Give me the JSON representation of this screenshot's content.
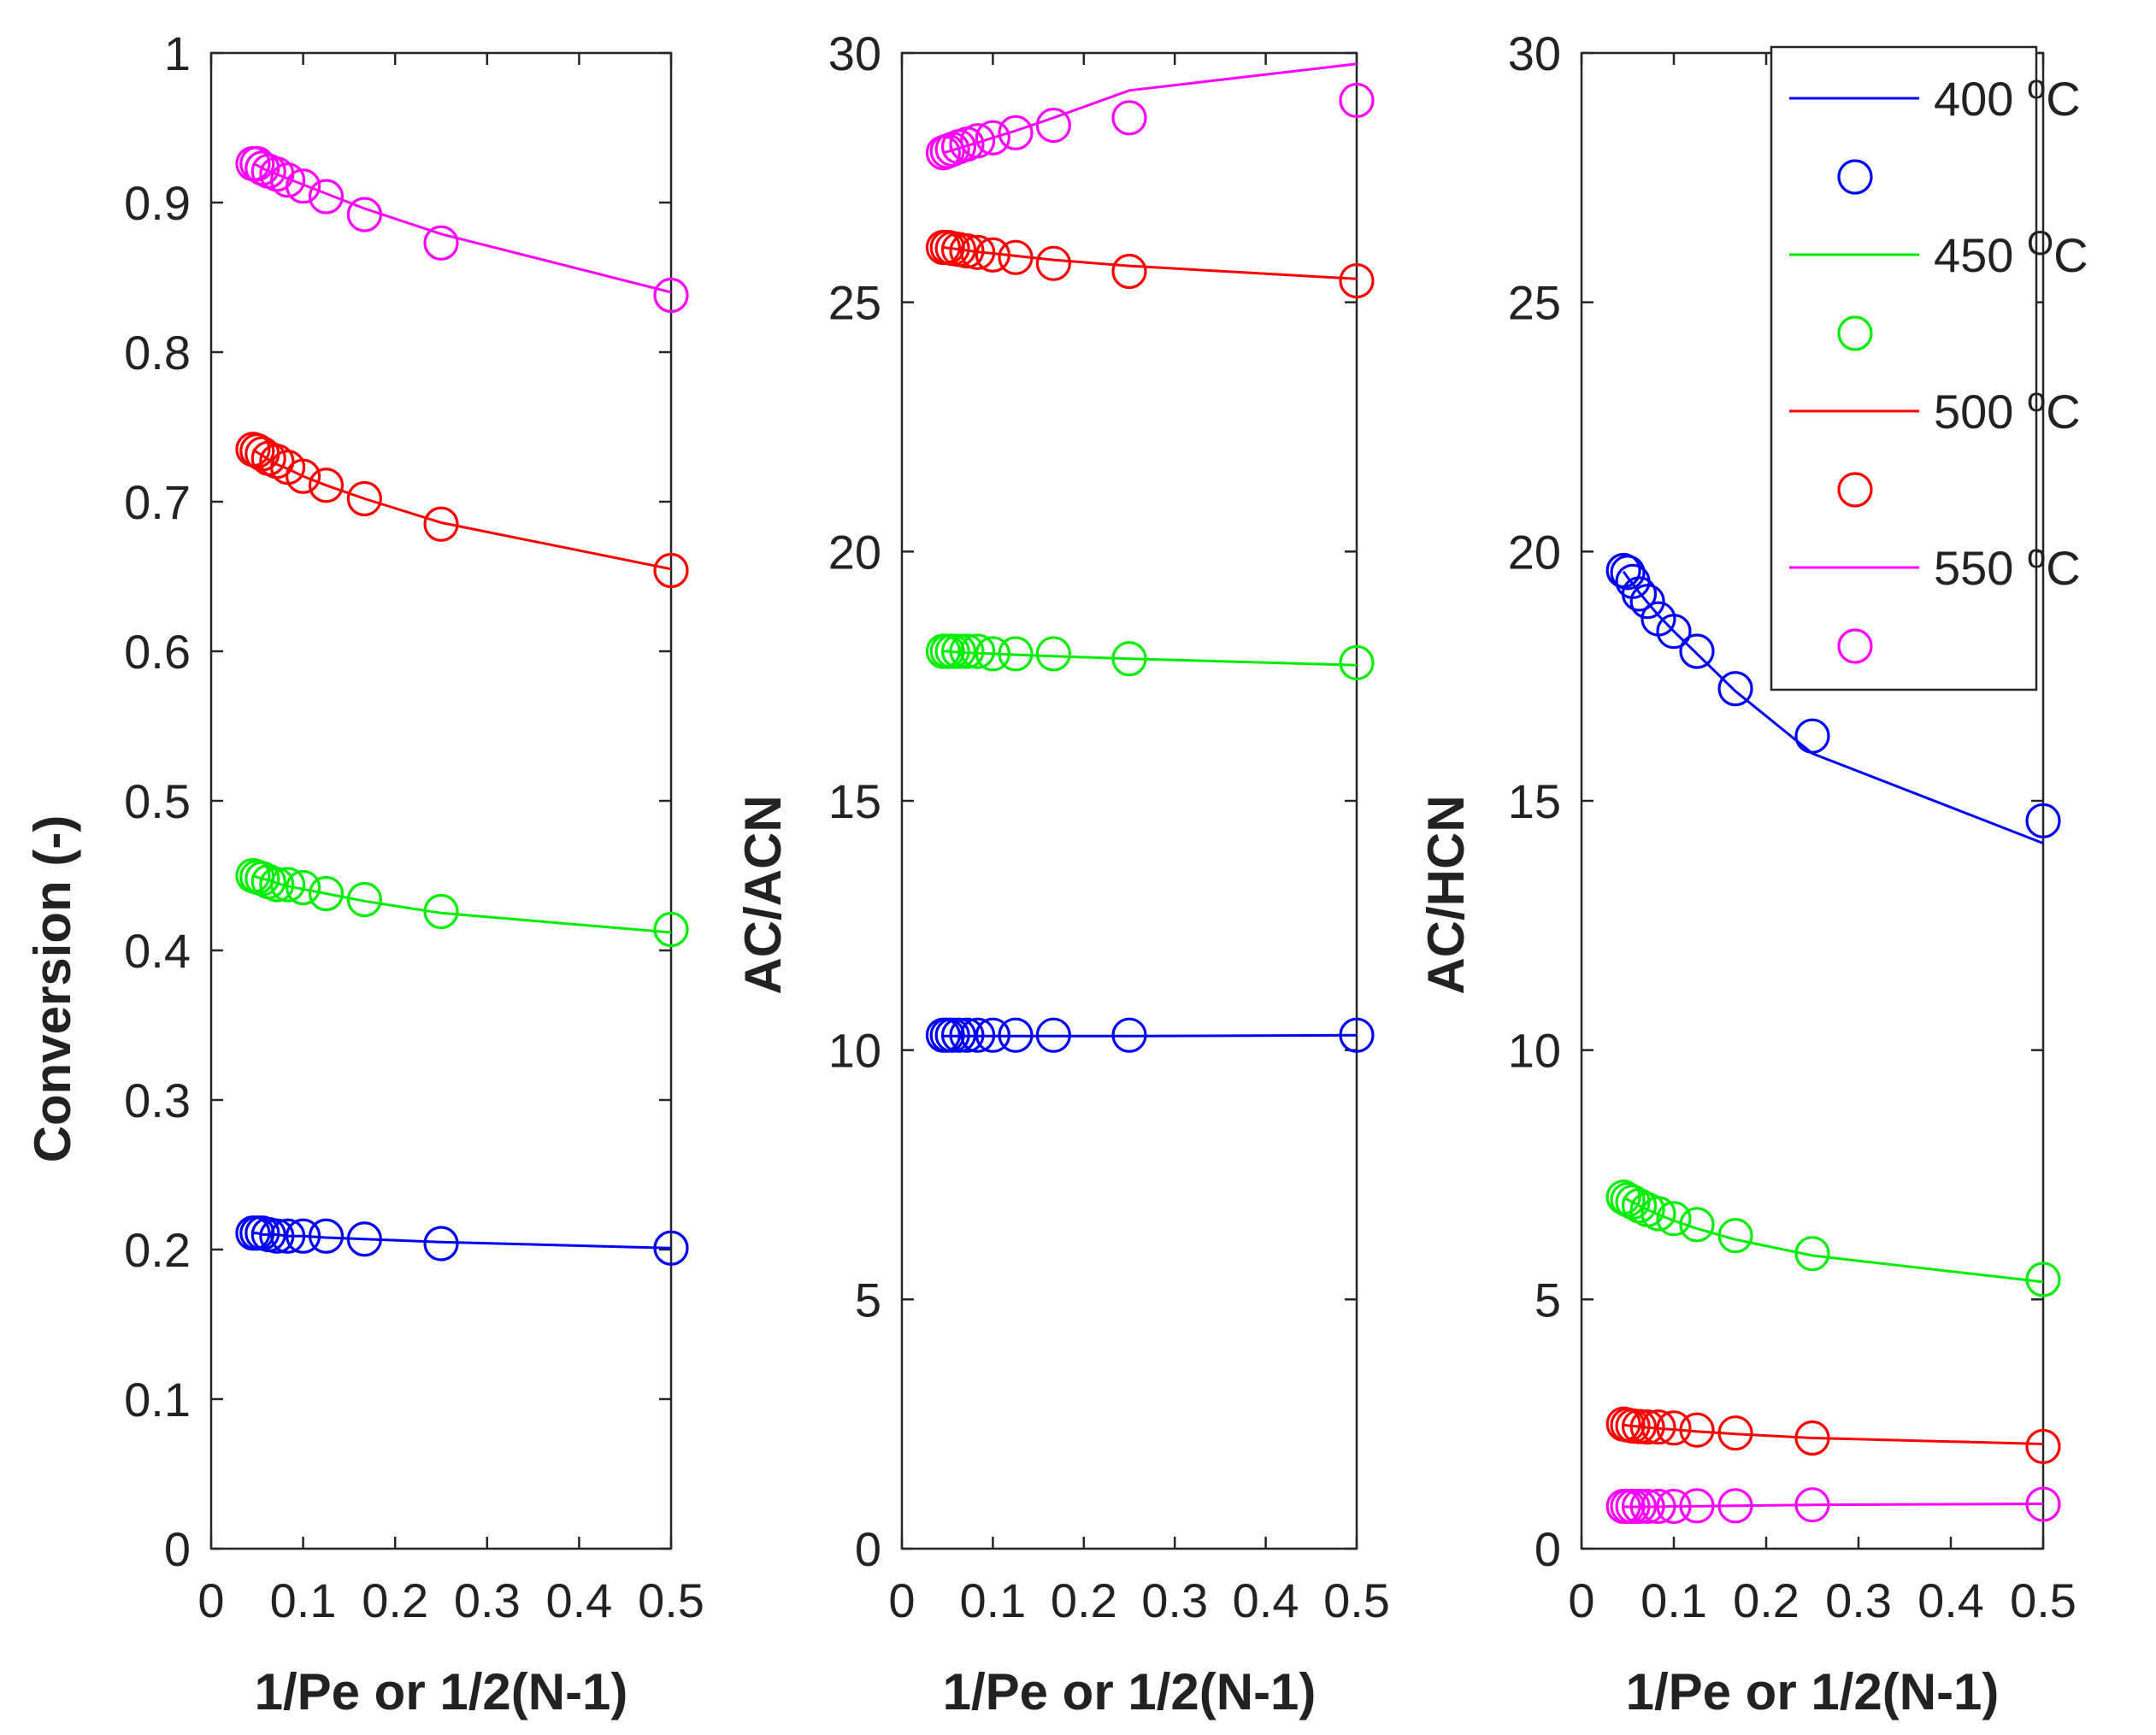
{
  "chart_data": [
    {
      "type": "line",
      "id": "conversion",
      "xlabel": "1/Pe or 1/2(N-1)",
      "ylabel": "Conversion (-)",
      "xlim": [
        0,
        0.5
      ],
      "ylim": [
        0,
        1
      ],
      "xticks": [
        0,
        0.1,
        0.2,
        0.3,
        0.4,
        0.5
      ],
      "xtick_labels": [
        "0",
        "0.1",
        "0.2",
        "0.3",
        "0.4",
        "0.5"
      ],
      "yticks": [
        0,
        0.1,
        0.2,
        0.3,
        0.4,
        0.5,
        0.6,
        0.7,
        0.8,
        0.9,
        1
      ],
      "ytick_labels": [
        "0",
        "0.1",
        "0.2",
        "0.3",
        "0.4",
        "0.5",
        "0.6",
        "0.7",
        "0.8",
        "0.9",
        "1"
      ],
      "x": [
        0.0455,
        0.05,
        0.0556,
        0.0625,
        0.0714,
        0.0833,
        0.1,
        0.125,
        0.1667,
        0.25,
        0.5
      ],
      "series": [
        {
          "name": "400 °C",
          "color": "#0000ff",
          "line": [
            0.211,
            0.211,
            0.21,
            0.21,
            0.21,
            0.209,
            0.209,
            0.208,
            0.207,
            0.205,
            0.201
          ],
          "markers": [
            0.211,
            0.211,
            0.211,
            0.21,
            0.209,
            0.209,
            0.209,
            0.209,
            0.207,
            0.204,
            0.201
          ]
        },
        {
          "name": "450 °C",
          "color": "#00ee00",
          "line": [
            0.45,
            0.449,
            0.448,
            0.447,
            0.445,
            0.443,
            0.441,
            0.438,
            0.433,
            0.425,
            0.412
          ],
          "markers": [
            0.45,
            0.449,
            0.448,
            0.446,
            0.444,
            0.444,
            0.442,
            0.438,
            0.434,
            0.426,
            0.414
          ]
        },
        {
          "name": "500 °C",
          "color": "#ff0000",
          "line": [
            0.735,
            0.733,
            0.731,
            0.728,
            0.725,
            0.722,
            0.717,
            0.711,
            0.702,
            0.686,
            0.655
          ],
          "markers": [
            0.735,
            0.734,
            0.732,
            0.729,
            0.727,
            0.723,
            0.717,
            0.711,
            0.702,
            0.685,
            0.654
          ]
        },
        {
          "name": "550 °C",
          "color": "#ff00ff",
          "line": [
            0.926,
            0.925,
            0.923,
            0.921,
            0.919,
            0.916,
            0.912,
            0.906,
            0.896,
            0.879,
            0.84
          ],
          "markers": [
            0.926,
            0.926,
            0.923,
            0.921,
            0.919,
            0.915,
            0.911,
            0.904,
            0.892,
            0.873,
            0.838
          ]
        }
      ]
    },
    {
      "type": "line",
      "id": "ac-acn",
      "xlabel": "1/Pe or 1/2(N-1)",
      "ylabel": "AC/ACN",
      "xlim": [
        0,
        0.5
      ],
      "ylim": [
        0,
        30
      ],
      "xticks": [
        0,
        0.1,
        0.2,
        0.3,
        0.4,
        0.5
      ],
      "xtick_labels": [
        "0",
        "0.1",
        "0.2",
        "0.3",
        "0.4",
        "0.5"
      ],
      "yticks": [
        0,
        5,
        10,
        15,
        20,
        25,
        30
      ],
      "ytick_labels": [
        "0",
        "5",
        "10",
        "15",
        "20",
        "25",
        "30"
      ],
      "x": [
        0.0455,
        0.05,
        0.0556,
        0.0625,
        0.0714,
        0.0833,
        0.1,
        0.125,
        0.1667,
        0.25,
        0.5
      ],
      "series": [
        {
          "name": "400 °C",
          "color": "#0000ff",
          "line": [
            10.28,
            10.28,
            10.28,
            10.28,
            10.28,
            10.28,
            10.28,
            10.28,
            10.28,
            10.28,
            10.3
          ],
          "markers": [
            10.3,
            10.3,
            10.3,
            10.3,
            10.3,
            10.3,
            10.3,
            10.3,
            10.3,
            10.3,
            10.3
          ]
        },
        {
          "name": "450 °C",
          "color": "#00ee00",
          "line": [
            18.0,
            18.0,
            17.99,
            17.98,
            17.97,
            17.96,
            17.95,
            17.93,
            17.9,
            17.85,
            17.72
          ],
          "markers": [
            18.0,
            18.0,
            18.0,
            18.0,
            18.0,
            18.0,
            17.95,
            17.95,
            17.95,
            17.85,
            17.77
          ]
        },
        {
          "name": "500 °C",
          "color": "#ff0000",
          "line": [
            26.1,
            26.09,
            26.08,
            26.06,
            26.04,
            26.01,
            25.98,
            25.93,
            25.85,
            25.73,
            25.47
          ],
          "markers": [
            26.1,
            26.1,
            26.08,
            26.06,
            26.03,
            26.0,
            25.95,
            25.9,
            25.78,
            25.62,
            25.43
          ]
        },
        {
          "name": "550 °C",
          "color": "#ff00ff",
          "line": [
            28.0,
            28.02,
            28.05,
            28.09,
            28.14,
            28.2,
            28.3,
            28.44,
            28.7,
            29.25,
            29.78
          ],
          "markers": [
            28.0,
            28.03,
            28.07,
            28.12,
            28.17,
            28.24,
            28.3,
            28.4,
            28.55,
            28.7,
            29.05
          ]
        }
      ]
    },
    {
      "type": "line",
      "id": "ac-hcn",
      "xlabel": "1/Pe or 1/2(N-1)",
      "ylabel": "AC/HCN",
      "xlim": [
        0,
        0.5
      ],
      "ylim": [
        0,
        30
      ],
      "xticks": [
        0,
        0.1,
        0.2,
        0.3,
        0.4,
        0.5
      ],
      "xtick_labels": [
        "0",
        "0.1",
        "0.2",
        "0.3",
        "0.4",
        "0.5"
      ],
      "yticks": [
        0,
        5,
        10,
        15,
        20,
        25,
        30
      ],
      "ytick_labels": [
        "0",
        "5",
        "10",
        "15",
        "20",
        "25",
        "30"
      ],
      "legend_position": "top-right",
      "x": [
        0.0455,
        0.05,
        0.0556,
        0.0625,
        0.0714,
        0.0833,
        0.1,
        0.125,
        0.1667,
        0.25,
        0.5
      ],
      "series": [
        {
          "name": "400 °C",
          "color": "#0000ff",
          "line": [
            19.6,
            19.48,
            19.35,
            19.18,
            18.98,
            18.72,
            18.4,
            17.95,
            17.2,
            15.95,
            14.15
          ],
          "markers": [
            19.62,
            19.58,
            19.4,
            19.15,
            19.0,
            18.65,
            18.4,
            18.0,
            17.25,
            16.3,
            14.6
          ]
        },
        {
          "name": "450 °C",
          "color": "#00ee00",
          "line": [
            7.05,
            7.0,
            6.95,
            6.88,
            6.8,
            6.7,
            6.58,
            6.42,
            6.2,
            5.88,
            5.35
          ],
          "markers": [
            7.05,
            7.0,
            6.95,
            6.88,
            6.8,
            6.72,
            6.62,
            6.5,
            6.28,
            5.92,
            5.4
          ]
        },
        {
          "name": "500 °C",
          "color": "#ff0000",
          "line": [
            2.48,
            2.47,
            2.46,
            2.45,
            2.43,
            2.41,
            2.39,
            2.35,
            2.3,
            2.22,
            2.1
          ],
          "markers": [
            2.5,
            2.48,
            2.46,
            2.45,
            2.44,
            2.44,
            2.42,
            2.38,
            2.32,
            2.22,
            2.05
          ]
        },
        {
          "name": "550 °C",
          "color": "#ff00ff",
          "line": [
            0.84,
            0.84,
            0.84,
            0.84,
            0.84,
            0.84,
            0.85,
            0.85,
            0.86,
            0.88,
            0.9
          ],
          "markers": [
            0.85,
            0.85,
            0.85,
            0.85,
            0.85,
            0.85,
            0.85,
            0.86,
            0.86,
            0.88,
            0.89
          ]
        }
      ]
    }
  ],
  "legend": {
    "entries": [
      {
        "value": "400",
        "sup": "o",
        "unit": "C",
        "color": "#0000ff"
      },
      {
        "value": "450",
        "sup": "O",
        "unit": "C",
        "color": "#00ee00"
      },
      {
        "value": "500",
        "sup": "o",
        "unit": "C",
        "color": "#ff0000"
      },
      {
        "value": "550",
        "sup": "o",
        "unit": "C",
        "color": "#ff00ff"
      }
    ]
  }
}
